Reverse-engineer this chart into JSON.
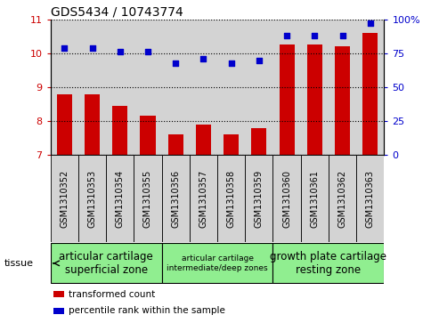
{
  "title": "GDS5434 / 10743774",
  "samples": [
    "GSM1310352",
    "GSM1310353",
    "GSM1310354",
    "GSM1310355",
    "GSM1310356",
    "GSM1310357",
    "GSM1310358",
    "GSM1310359",
    "GSM1310360",
    "GSM1310361",
    "GSM1310362",
    "GSM1310363"
  ],
  "bar_values": [
    8.8,
    8.8,
    8.45,
    8.15,
    7.6,
    7.9,
    7.6,
    7.8,
    10.25,
    10.25,
    10.2,
    10.6
  ],
  "scatter_values": [
    79,
    79,
    76,
    76,
    68,
    71,
    68,
    70,
    88,
    88,
    88,
    97
  ],
  "ylim_left": [
    7,
    11
  ],
  "ylim_right": [
    0,
    100
  ],
  "yticks_left": [
    7,
    8,
    9,
    10,
    11
  ],
  "yticks_right": [
    0,
    25,
    50,
    75,
    100
  ],
  "ytick_labels_right": [
    "0",
    "25",
    "50",
    "75",
    "100%"
  ],
  "bar_color": "#cc0000",
  "scatter_color": "#0000cc",
  "grid_color": "#000000",
  "tissue_groups": [
    {
      "label": "articular cartilage\nsuperficial zone",
      "start": 0,
      "end": 4,
      "color": "#90ee90",
      "fontsize": 8.5
    },
    {
      "label": "articular cartilage\nintermediate/deep zones",
      "start": 4,
      "end": 8,
      "color": "#90ee90",
      "fontsize": 6.5
    },
    {
      "label": "growth plate cartilage\nresting zone",
      "start": 8,
      "end": 12,
      "color": "#90ee90",
      "fontsize": 8.5
    }
  ],
  "legend_items": [
    {
      "color": "#cc0000",
      "label": "transformed count"
    },
    {
      "color": "#0000cc",
      "label": "percentile rank within the sample"
    }
  ],
  "tissue_label": "tissue",
  "bg_bar_color": "#d3d3d3",
  "title_fontsize": 10,
  "tick_fontsize": 8,
  "sample_fontsize": 7
}
